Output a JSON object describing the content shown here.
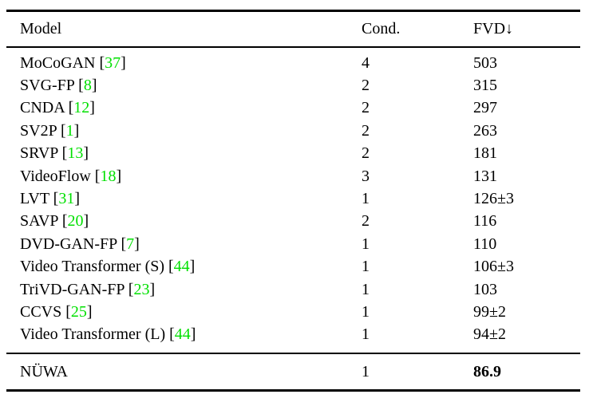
{
  "table": {
    "columns": [
      "Model",
      "Cond.",
      "FVD↓"
    ],
    "rows": [
      {
        "model": "MoCoGAN",
        "cite": "37",
        "cond": "4",
        "fvd": "503"
      },
      {
        "model": "SVG-FP",
        "cite": "8",
        "cond": "2",
        "fvd": "315"
      },
      {
        "model": "CNDA",
        "cite": "12",
        "cond": "2",
        "fvd": "297"
      },
      {
        "model": "SV2P",
        "cite": "1",
        "cond": "2",
        "fvd": "263"
      },
      {
        "model": "SRVP",
        "cite": "13",
        "cond": "2",
        "fvd": "181"
      },
      {
        "model": "VideoFlow",
        "cite": "18",
        "cond": "3",
        "fvd": "131"
      },
      {
        "model": "LVT",
        "cite": "31",
        "cond": "1",
        "fvd": "126±3"
      },
      {
        "model": "SAVP",
        "cite": "20",
        "cond": "2",
        "fvd": "116"
      },
      {
        "model": "DVD-GAN-FP",
        "cite": "7",
        "cond": "1",
        "fvd": "110"
      },
      {
        "model": "Video Transformer (S)",
        "cite": "44",
        "cond": "1",
        "fvd": "106±3"
      },
      {
        "model": "TriVD-GAN-FP",
        "cite": "23",
        "cond": "1",
        "fvd": "103"
      },
      {
        "model": "CCVS",
        "cite": "25",
        "cond": "1",
        "fvd": "99±2"
      },
      {
        "model": "Video Transformer (L)",
        "cite": "44",
        "cond": "1",
        "fvd": "94±2"
      }
    ],
    "final_row": {
      "model": "NÜWA",
      "cond": "1",
      "fvd": "86.9"
    }
  },
  "colors": {
    "citation_green": "#00e000",
    "text": "#000000",
    "rule": "#000000"
  }
}
